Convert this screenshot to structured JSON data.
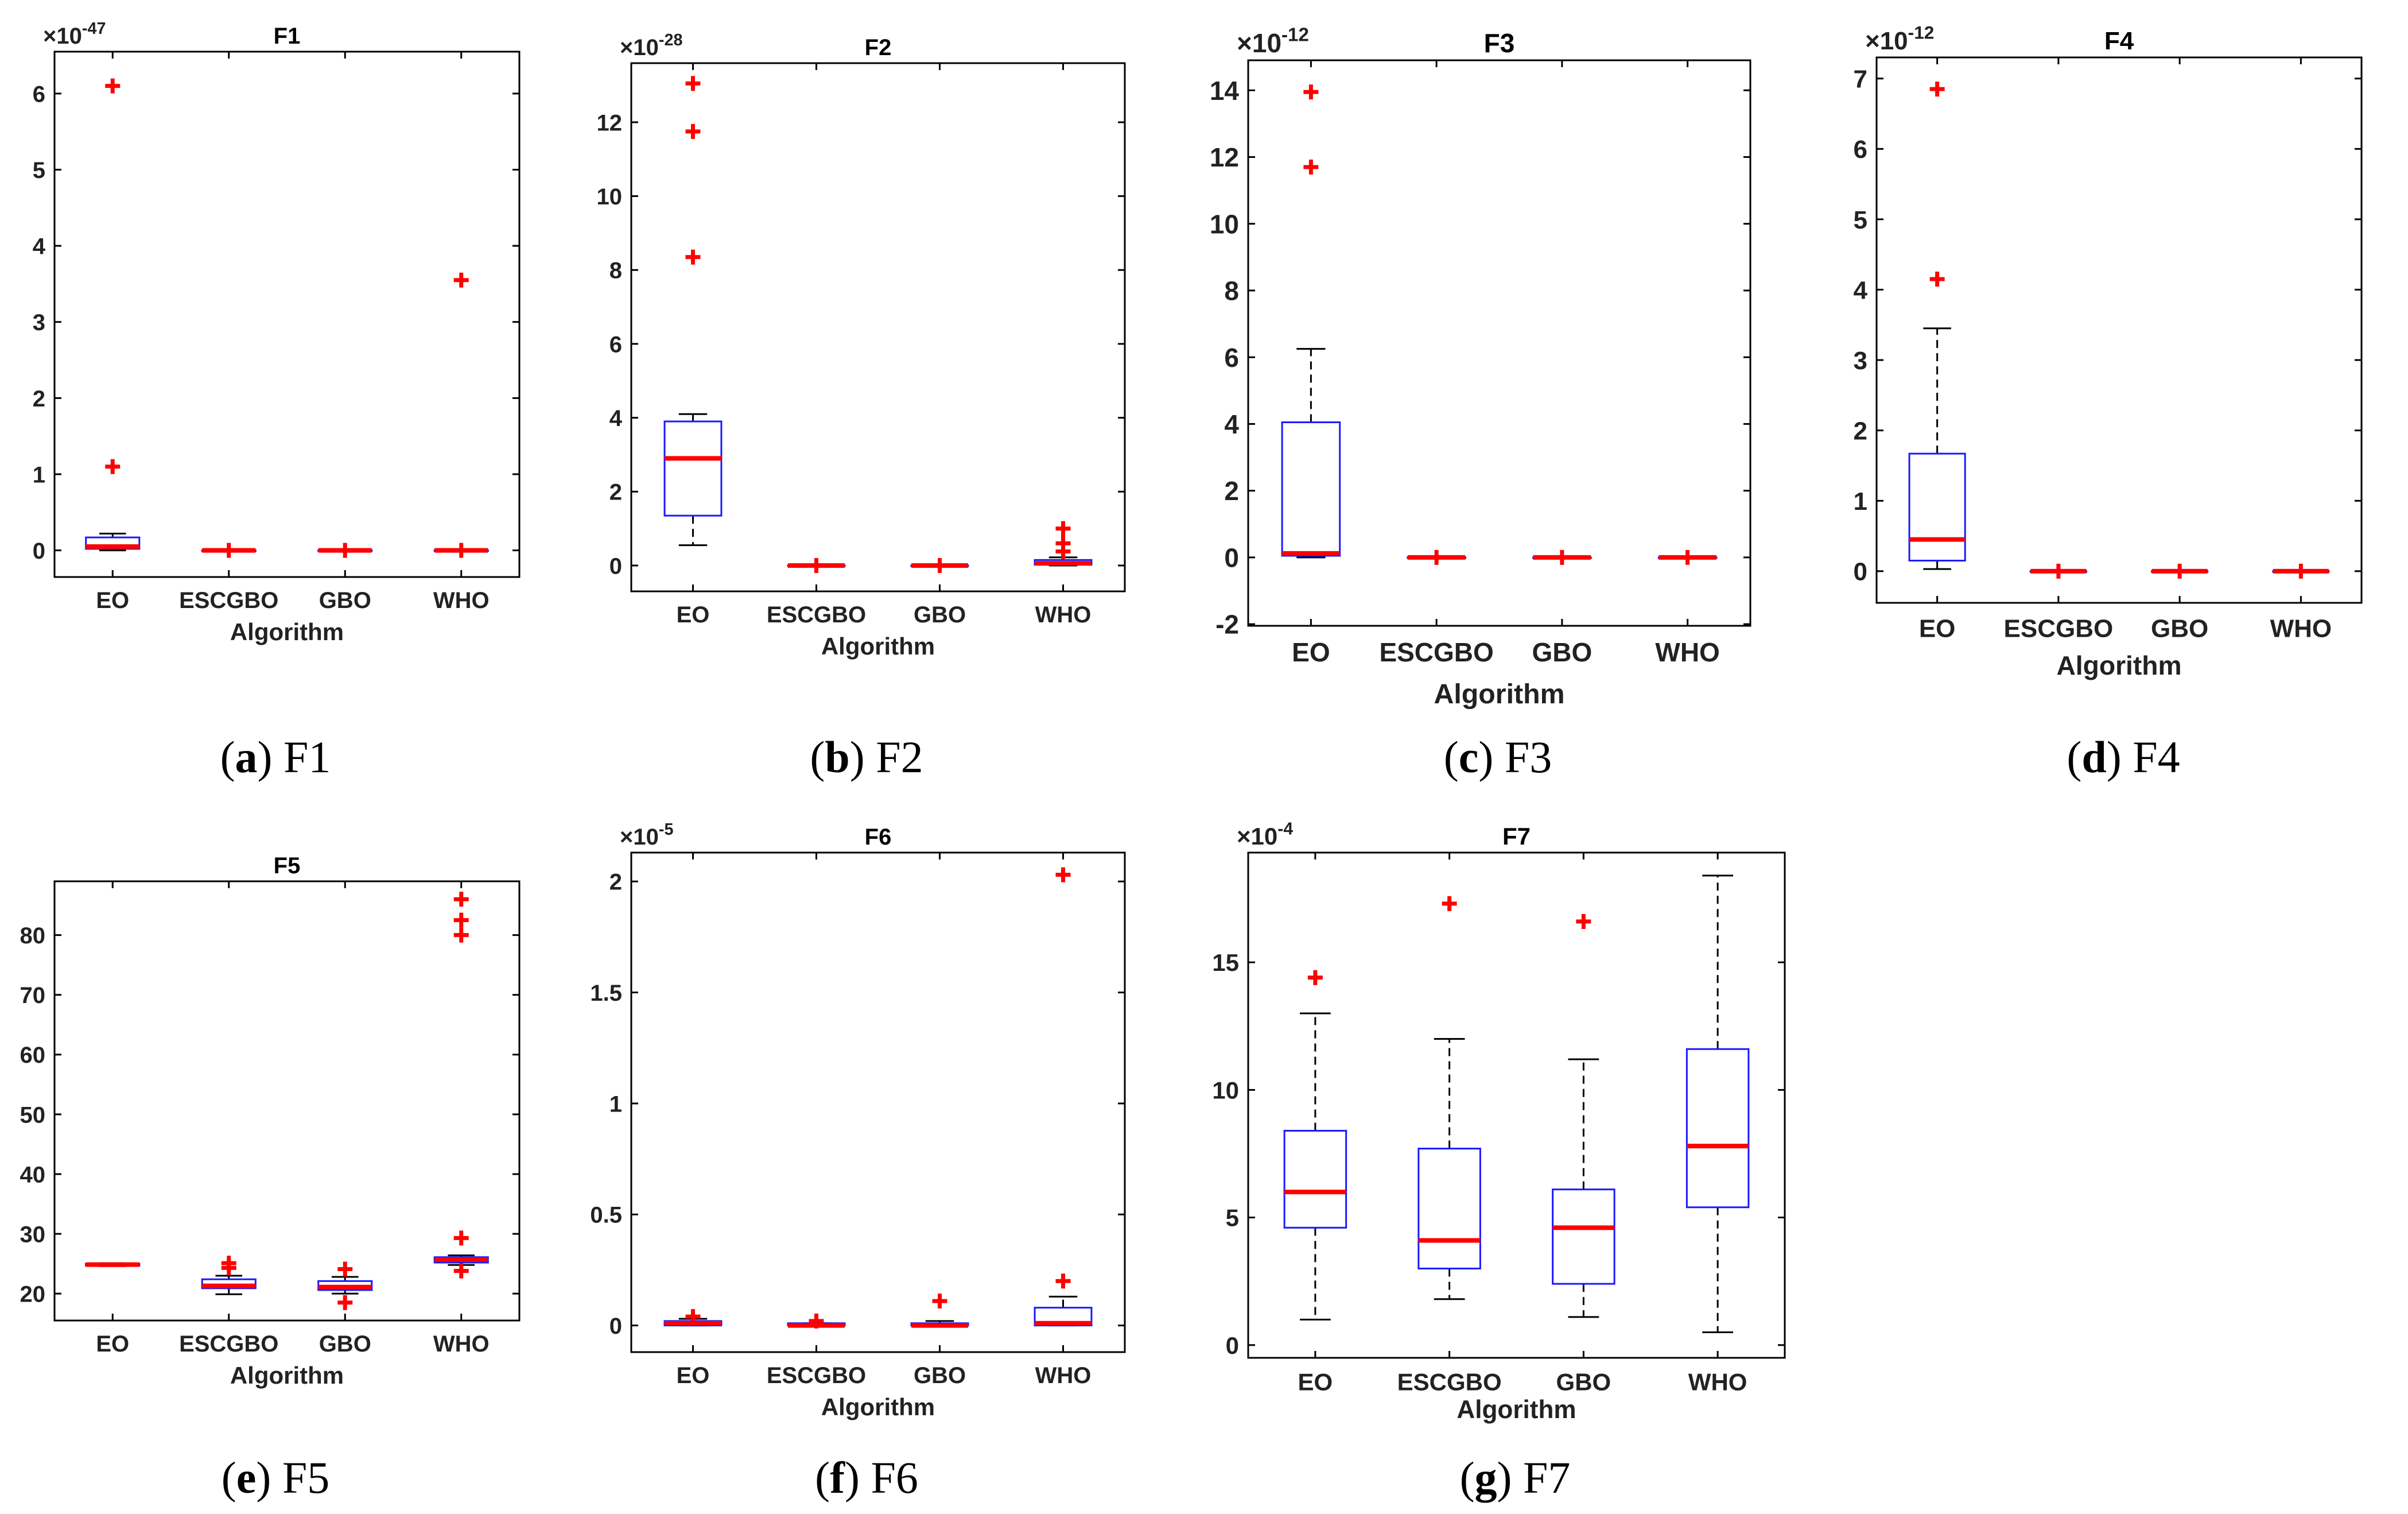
{
  "colors": {
    "box": "#1a1aff",
    "median": "#ff0000",
    "outlier": "#ff0000",
    "whisker": "#000000",
    "axes": "#000000"
  },
  "chart_data": [
    {
      "id": "F1",
      "type": "box",
      "title": "F1",
      "xlabel": "Algorithm",
      "ylabel": "",
      "exponent_label": "×10-47",
      "exp_base": "×10",
      "exp_power": "-47",
      "ylim": [
        -0.35,
        6.55
      ],
      "yticks": [
        0,
        1,
        2,
        3,
        4,
        5,
        6
      ],
      "categories": [
        "EO",
        "ESCGBO",
        "GBO",
        "WHO"
      ],
      "boxes": [
        {
          "q1": 0.02,
          "median": 0.05,
          "q3": 0.17,
          "wlow": 0.0,
          "whigh": 0.22,
          "outliers": [
            1.1,
            6.1
          ]
        },
        {
          "q1": 0.0,
          "median": 0.0,
          "q3": 0.0,
          "wlow": 0.0,
          "whigh": 0.0,
          "outliers": [
            0.0
          ]
        },
        {
          "q1": 0.0,
          "median": 0.0,
          "q3": 0.0,
          "wlow": 0.0,
          "whigh": 0.0,
          "outliers": [
            0.0
          ]
        },
        {
          "q1": 0.0,
          "median": 0.0,
          "q3": 0.0,
          "wlow": 0.0,
          "whigh": 0.0,
          "outliers": [
            0.0,
            3.55
          ]
        }
      ],
      "caption_letter": "a",
      "caption_text": "F1"
    },
    {
      "id": "F2",
      "type": "box",
      "title": "F2",
      "xlabel": "Algorithm",
      "ylabel": "",
      "exponent_label": "×10-28",
      "exp_base": "×10",
      "exp_power": "-28",
      "ylim": [
        -0.7,
        13.6
      ],
      "yticks": [
        0,
        2,
        4,
        6,
        8,
        10,
        12
      ],
      "categories": [
        "EO",
        "ESCGBO",
        "GBO",
        "WHO"
      ],
      "boxes": [
        {
          "q1": 1.35,
          "median": 2.9,
          "q3": 3.9,
          "wlow": 0.55,
          "whigh": 4.1,
          "outliers": [
            8.35,
            11.75,
            13.05
          ]
        },
        {
          "q1": 0.0,
          "median": 0.0,
          "q3": 0.0,
          "wlow": 0.0,
          "whigh": 0.0,
          "outliers": [
            0.0
          ]
        },
        {
          "q1": 0.0,
          "median": 0.0,
          "q3": 0.0,
          "wlow": 0.0,
          "whigh": 0.0,
          "outliers": [
            0.0
          ]
        },
        {
          "q1": 0.02,
          "median": 0.06,
          "q3": 0.15,
          "wlow": 0.0,
          "whigh": 0.22,
          "outliers": [
            0.38,
            0.6,
            1.0
          ]
        }
      ],
      "caption_letter": "b",
      "caption_text": "F2"
    },
    {
      "id": "F3",
      "type": "box",
      "title": "F3",
      "xlabel": "Algorithm",
      "ylabel": "",
      "exponent_label": "×10-12",
      "exp_base": "×10",
      "exp_power": "-12",
      "ylim": [
        -2.05,
        14.9
      ],
      "yticks": [
        -2,
        0,
        2,
        4,
        6,
        8,
        10,
        12,
        14
      ],
      "categories": [
        "EO",
        "ESCGBO",
        "GBO",
        "WHO"
      ],
      "boxes": [
        {
          "q1": 0.05,
          "median": 0.12,
          "q3": 4.05,
          "wlow": 0.0,
          "whigh": 6.25,
          "outliers": [
            11.7,
            13.95
          ]
        },
        {
          "q1": 0.0,
          "median": 0.0,
          "q3": 0.0,
          "wlow": 0.0,
          "whigh": 0.0,
          "outliers": [
            0.0
          ]
        },
        {
          "q1": 0.0,
          "median": 0.0,
          "q3": 0.0,
          "wlow": 0.0,
          "whigh": 0.0,
          "outliers": [
            0.0
          ]
        },
        {
          "q1": 0.0,
          "median": 0.0,
          "q3": 0.0,
          "wlow": 0.0,
          "whigh": 0.0,
          "outliers": [
            0.0
          ]
        }
      ],
      "caption_letter": "c",
      "caption_text": "F3"
    },
    {
      "id": "F4",
      "type": "box",
      "title": "F4",
      "xlabel": "Algorithm",
      "ylabel": "",
      "exponent_label": "×10-12",
      "exp_base": "×10",
      "exp_power": "-12",
      "ylim": [
        -0.45,
        7.3
      ],
      "yticks": [
        0,
        1,
        2,
        3,
        4,
        5,
        6,
        7
      ],
      "categories": [
        "EO",
        "ESCGBO",
        "GBO",
        "WHO"
      ],
      "boxes": [
        {
          "q1": 0.15,
          "median": 0.45,
          "q3": 1.67,
          "wlow": 0.03,
          "whigh": 3.45,
          "outliers": [
            4.15,
            6.85
          ]
        },
        {
          "q1": 0.0,
          "median": 0.0,
          "q3": 0.0,
          "wlow": 0.0,
          "whigh": 0.0,
          "outliers": [
            0.0
          ]
        },
        {
          "q1": 0.0,
          "median": 0.0,
          "q3": 0.0,
          "wlow": 0.0,
          "whigh": 0.0,
          "outliers": [
            0.0
          ]
        },
        {
          "q1": 0.0,
          "median": 0.0,
          "q3": 0.0,
          "wlow": 0.0,
          "whigh": 0.0,
          "outliers": [
            0.0
          ]
        }
      ],
      "caption_letter": "d",
      "caption_text": "F4"
    },
    {
      "id": "F5",
      "type": "box",
      "title": "F5",
      "xlabel": "Algorithm",
      "ylabel": "",
      "exponent_label": "",
      "exp_base": "",
      "exp_power": "",
      "ylim": [
        15.5,
        89
      ],
      "yticks": [
        20,
        30,
        40,
        50,
        60,
        70,
        80
      ],
      "categories": [
        "EO",
        "ESCGBO",
        "GBO",
        "WHO"
      ],
      "boxes": [
        {
          "q1": 24.7,
          "median": 24.85,
          "q3": 25.0,
          "wlow": 24.6,
          "whigh": 25.1,
          "outliers": []
        },
        {
          "q1": 20.9,
          "median": 21.3,
          "q3": 22.4,
          "wlow": 19.9,
          "whigh": 23.0,
          "outliers": [
            24.3,
            25.1
          ]
        },
        {
          "q1": 20.6,
          "median": 21.1,
          "q3": 22.1,
          "wlow": 20.0,
          "whigh": 22.8,
          "outliers": [
            18.5,
            24.1
          ]
        },
        {
          "q1": 25.2,
          "median": 25.7,
          "q3": 26.1,
          "wlow": 24.8,
          "whigh": 26.4,
          "outliers": [
            23.8,
            29.3,
            80.0,
            82.5,
            86.0
          ]
        }
      ],
      "caption_letter": "e",
      "caption_text": "F5"
    },
    {
      "id": "F6",
      "type": "box",
      "title": "F6",
      "xlabel": "Algorithm",
      "ylabel": "",
      "exponent_label": "×10-5",
      "exp_base": "×10",
      "exp_power": "-5",
      "ylim": [
        -0.12,
        2.13
      ],
      "yticks": [
        0,
        0.5,
        1,
        1.5,
        2
      ],
      "yticklabels": [
        "0",
        "0.5",
        "1",
        "1.5",
        "2"
      ],
      "categories": [
        "EO",
        "ESCGBO",
        "GBO",
        "WHO"
      ],
      "boxes": [
        {
          "q1": 0.0,
          "median": 0.01,
          "q3": 0.02,
          "wlow": 0.0,
          "whigh": 0.03,
          "outliers": [
            0.04
          ]
        },
        {
          "q1": 0.0,
          "median": 0.0,
          "q3": 0.01,
          "wlow": 0.0,
          "whigh": 0.01,
          "outliers": [
            0.02
          ]
        },
        {
          "q1": 0.0,
          "median": 0.0,
          "q3": 0.01,
          "wlow": 0.0,
          "whigh": 0.02,
          "outliers": [
            0.11
          ]
        },
        {
          "q1": 0.0,
          "median": 0.01,
          "q3": 0.08,
          "wlow": 0.0,
          "whigh": 0.13,
          "outliers": [
            0.2,
            2.03
          ]
        }
      ],
      "caption_letter": "f",
      "caption_text": "F6"
    },
    {
      "id": "F7",
      "type": "box",
      "title": "F7",
      "xlabel": "Algorithm",
      "ylabel": "",
      "exponent_label": "×10-4",
      "exp_base": "×10",
      "exp_power": "-4",
      "ylim": [
        -0.5,
        19.3
      ],
      "yticks": [
        0,
        5,
        10,
        15
      ],
      "categories": [
        "EO",
        "ESCGBO",
        "GBO",
        "WHO"
      ],
      "boxes": [
        {
          "q1": 4.6,
          "median": 6.0,
          "q3": 8.4,
          "wlow": 1.0,
          "whigh": 13.0,
          "outliers": [
            14.4
          ]
        },
        {
          "q1": 3.0,
          "median": 4.1,
          "q3": 7.7,
          "wlow": 1.8,
          "whigh": 12.0,
          "outliers": [
            17.3
          ]
        },
        {
          "q1": 2.4,
          "median": 4.6,
          "q3": 6.1,
          "wlow": 1.1,
          "whigh": 11.2,
          "outliers": [
            16.6
          ]
        },
        {
          "q1": 5.4,
          "median": 7.8,
          "q3": 11.6,
          "wlow": 0.5,
          "whigh": 18.4,
          "outliers": []
        }
      ],
      "caption_letter": "g",
      "caption_text": "F7"
    }
  ]
}
